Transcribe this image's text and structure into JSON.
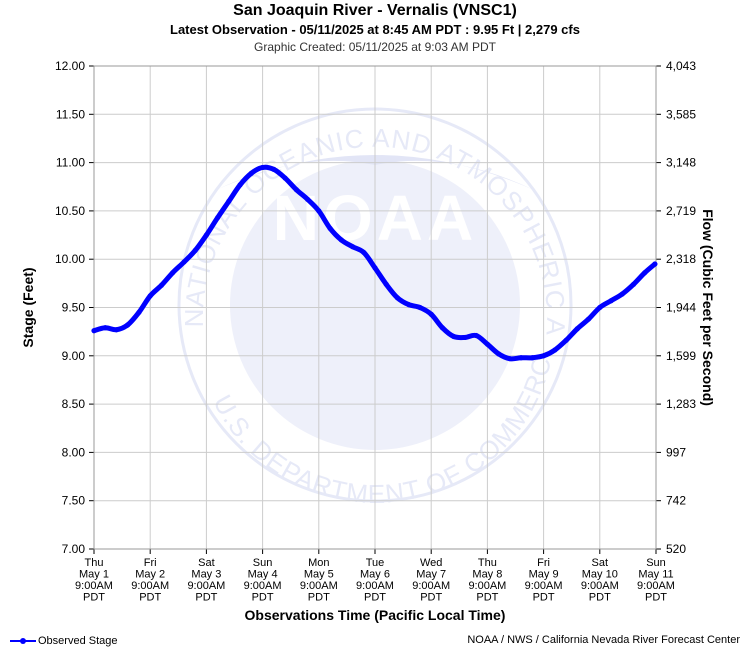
{
  "header": {
    "title": "San Joaquin River - Vernalis (VNSC1)",
    "subtitle": "Latest Observation - 05/11/2025 at 8:45 AM PDT : 9.95 Ft | 2,279 cfs",
    "created": "Graphic Created: 05/11/2025 at 9:03 AM PDT"
  },
  "footer": {
    "legend_label": "Observed Stage",
    "credit": "NOAA / NWS / California Nevada River Forecast Center"
  },
  "colors": {
    "series": "#0000ff",
    "grid": "#cccccc",
    "watermark": "#e6e9f7"
  },
  "watermark": {
    "logo_text": "NOAA",
    "ring_text_top": "NATIONAL OCEANIC AND ATMOSPHERIC ADMINISTRATION",
    "ring_text_bottom": "U.S. DEPARTMENT OF COMMERCE"
  },
  "chart_data": {
    "type": "line",
    "xlabel": "Observations Time (Pacific Local Time)",
    "ylabel": "Stage (Feet)",
    "y2label": "Flow (Cubic Feet per Second)",
    "ylim": [
      7.0,
      12.0
    ],
    "xlim": [
      0,
      10
    ],
    "yticks": [
      "12.00",
      "11.50",
      "11.00",
      "10.50",
      "10.00",
      "9.50",
      "9.00",
      "8.50",
      "8.00",
      "7.50",
      "7.00"
    ],
    "y2ticks": [
      "4,043",
      "3,585",
      "3,148",
      "2,719",
      "2,318",
      "1,944",
      "1,599",
      "1,283",
      "997",
      "742",
      "520"
    ],
    "xticks": [
      [
        "Thu",
        "May 1",
        "9:00AM",
        "PDT"
      ],
      [
        "Fri",
        "May 2",
        "9:00AM",
        "PDT"
      ],
      [
        "Sat",
        "May 3",
        "9:00AM",
        "PDT"
      ],
      [
        "Sun",
        "May 4",
        "9:00AM",
        "PDT"
      ],
      [
        "Mon",
        "May 5",
        "9:00AM",
        "PDT"
      ],
      [
        "Tue",
        "May 6",
        "9:00AM",
        "PDT"
      ],
      [
        "Wed",
        "May 7",
        "9:00AM",
        "PDT"
      ],
      [
        "Thu",
        "May 8",
        "9:00AM",
        "PDT"
      ],
      [
        "Fri",
        "May 9",
        "9:00AM",
        "PDT"
      ],
      [
        "Sat",
        "May 10",
        "9:00AM",
        "PDT"
      ],
      [
        "Sun",
        "May 11",
        "9:00AM",
        "PDT"
      ]
    ],
    "grid": true,
    "series": [
      {
        "name": "Observed Stage",
        "x": [
          0,
          0.2,
          0.4,
          0.6,
          0.8,
          1.0,
          1.2,
          1.4,
          1.6,
          1.8,
          2.0,
          2.2,
          2.4,
          2.6,
          2.8,
          3.0,
          3.2,
          3.4,
          3.6,
          3.8,
          4.0,
          4.2,
          4.4,
          4.6,
          4.8,
          5.0,
          5.2,
          5.4,
          5.6,
          5.8,
          6.0,
          6.2,
          6.4,
          6.6,
          6.8,
          7.0,
          7.2,
          7.4,
          7.6,
          7.8,
          8.0,
          8.2,
          8.4,
          8.6,
          8.8,
          9.0,
          9.2,
          9.4,
          9.6,
          9.8,
          9.98
        ],
        "y": [
          9.26,
          9.29,
          9.27,
          9.32,
          9.45,
          9.62,
          9.73,
          9.86,
          9.97,
          10.09,
          10.25,
          10.43,
          10.6,
          10.77,
          10.89,
          10.95,
          10.93,
          10.84,
          10.72,
          10.62,
          10.5,
          10.32,
          10.2,
          10.13,
          10.07,
          9.91,
          9.74,
          9.6,
          9.53,
          9.5,
          9.43,
          9.29,
          9.2,
          9.19,
          9.21,
          9.12,
          9.02,
          8.97,
          8.98,
          8.98,
          9.0,
          9.06,
          9.16,
          9.28,
          9.38,
          9.5,
          9.57,
          9.64,
          9.74,
          9.86,
          9.95
        ]
      }
    ]
  }
}
